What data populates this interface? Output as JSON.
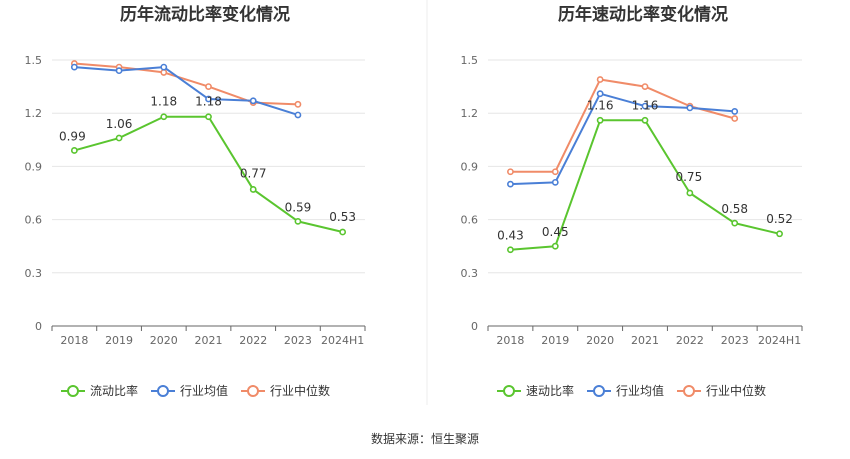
{
  "source_note": "数据来源：恒生聚源",
  "colors": {
    "company": "#5ac52f",
    "industry_avg": "#4a7fd6",
    "industry_median": "#f08b68"
  },
  "chart_data": [
    {
      "type": "line",
      "title": "历年流动比率变化情况",
      "categories": [
        "2018",
        "2019",
        "2020",
        "2021",
        "2022",
        "2023",
        "2024H1"
      ],
      "ylim": [
        0,
        1.5
      ],
      "yticks": [
        "0",
        "0.3",
        "0.6",
        "0.9",
        "1.2",
        "1.5"
      ],
      "ytick_values": [
        0,
        0.3,
        0.6,
        0.9,
        1.2,
        1.5
      ],
      "series": [
        {
          "name": "流动比率",
          "values": [
            0.99,
            1.06,
            1.18,
            1.18,
            0.77,
            0.59,
            0.53
          ],
          "labels": [
            "0.99",
            "1.06",
            "1.18",
            "1.18",
            "0.77",
            "0.59",
            "0.53"
          ]
        },
        {
          "name": "行业均值",
          "values": [
            1.46,
            1.44,
            1.46,
            1.28,
            1.27,
            1.19,
            null
          ]
        },
        {
          "name": "行业中位数",
          "values": [
            1.48,
            1.46,
            1.43,
            1.35,
            1.26,
            1.25,
            null
          ]
        }
      ]
    },
    {
      "type": "line",
      "title": "历年速动比率变化情况",
      "categories": [
        "2018",
        "2019",
        "2020",
        "2021",
        "2022",
        "2023",
        "2024H1"
      ],
      "ylim": [
        0,
        1.5
      ],
      "yticks": [
        "0",
        "0.3",
        "0.6",
        "0.9",
        "1.2",
        "1.5"
      ],
      "ytick_values": [
        0,
        0.3,
        0.6,
        0.9,
        1.2,
        1.5
      ],
      "series": [
        {
          "name": "速动比率",
          "values": [
            0.43,
            0.45,
            1.16,
            1.16,
            0.75,
            0.58,
            0.52
          ],
          "labels": [
            "0.43",
            "0.45",
            "1.16",
            "1.16",
            "0.75",
            "0.58",
            "0.52"
          ]
        },
        {
          "name": "行业均值",
          "values": [
            0.8,
            0.81,
            1.31,
            1.24,
            1.23,
            1.21,
            null
          ]
        },
        {
          "name": "行业中位数",
          "values": [
            0.87,
            0.87,
            1.39,
            1.35,
            1.24,
            1.17,
            null
          ]
        }
      ]
    }
  ]
}
